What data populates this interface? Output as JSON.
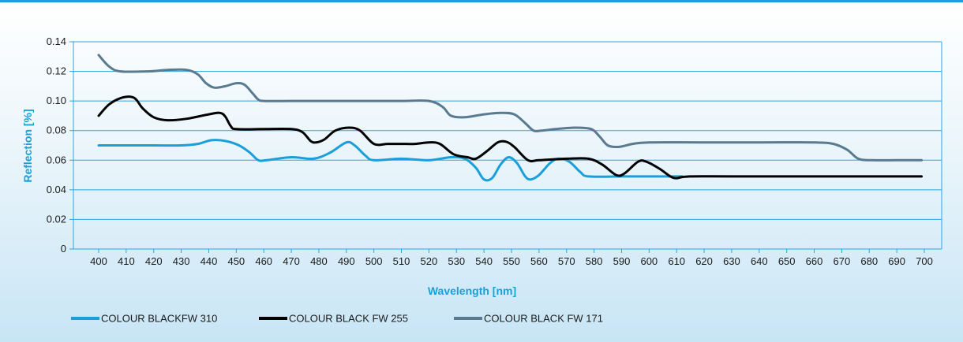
{
  "chart_data": {
    "type": "line",
    "title": "",
    "xlabel": "Wavelength [nm]",
    "ylabel": "Reflection [%]",
    "xlim": [
      400,
      700
    ],
    "ylim": [
      0,
      0.14
    ],
    "grid": "horizontal",
    "legend_position": "bottom",
    "x_ticks": [
      "400",
      "410",
      "420",
      "430",
      "440",
      "450",
      "460",
      "470",
      "480",
      "490",
      "500",
      "510",
      "520",
      "530",
      "540",
      "550",
      "560",
      "570",
      "580",
      "590",
      "600",
      "610",
      "620",
      "630",
      "640",
      "650",
      "660",
      "670",
      "680",
      "690",
      "700"
    ],
    "y_ticks": [
      "0",
      "0.02",
      "0.04",
      "0.06",
      "0.08",
      "0.10",
      "0.12",
      "0.14"
    ],
    "series": [
      {
        "name": "COLOUR BLACKFW 310",
        "color": "#1a9fdb",
        "points": [
          [
            400,
            0.07
          ],
          [
            410,
            0.07
          ],
          [
            420,
            0.07
          ],
          [
            430,
            0.07
          ],
          [
            436,
            0.071
          ],
          [
            441,
            0.0735
          ],
          [
            446,
            0.073
          ],
          [
            451,
            0.07
          ],
          [
            455,
            0.065
          ],
          [
            458,
            0.06
          ],
          [
            461,
            0.06
          ],
          [
            470,
            0.062
          ],
          [
            478,
            0.061
          ],
          [
            484,
            0.065
          ],
          [
            490,
            0.072
          ],
          [
            493,
            0.07
          ],
          [
            497,
            0.063
          ],
          [
            500,
            0.06
          ],
          [
            510,
            0.061
          ],
          [
            520,
            0.06
          ],
          [
            528,
            0.062
          ],
          [
            533,
            0.061
          ],
          [
            537,
            0.055
          ],
          [
            540,
            0.047
          ],
          [
            543,
            0.048
          ],
          [
            546,
            0.057
          ],
          [
            549,
            0.062
          ],
          [
            552,
            0.058
          ],
          [
            555,
            0.049
          ],
          [
            557,
            0.047
          ],
          [
            560,
            0.05
          ],
          [
            564,
            0.058
          ],
          [
            567,
            0.061
          ],
          [
            571,
            0.059
          ],
          [
            575,
            0.052
          ],
          [
            578,
            0.049
          ],
          [
            590,
            0.049
          ],
          [
            600,
            0.049
          ],
          [
            612,
            0.049
          ]
        ]
      },
      {
        "name": "COLOUR BLACK FW 255",
        "color": "#000000",
        "points": [
          [
            400,
            0.09
          ],
          [
            404,
            0.098
          ],
          [
            409,
            0.1025
          ],
          [
            413,
            0.102
          ],
          [
            416,
            0.095
          ],
          [
            420,
            0.089
          ],
          [
            425,
            0.087
          ],
          [
            432,
            0.088
          ],
          [
            440,
            0.091
          ],
          [
            444,
            0.092
          ],
          [
            446,
            0.0895
          ],
          [
            448,
            0.083
          ],
          [
            450,
            0.081
          ],
          [
            460,
            0.081
          ],
          [
            470,
            0.081
          ],
          [
            474,
            0.079
          ],
          [
            477,
            0.073
          ],
          [
            479,
            0.072
          ],
          [
            482,
            0.074
          ],
          [
            486,
            0.08
          ],
          [
            491,
            0.082
          ],
          [
            495,
            0.08
          ],
          [
            500,
            0.071
          ],
          [
            505,
            0.071
          ],
          [
            510,
            0.071
          ],
          [
            515,
            0.071
          ],
          [
            520,
            0.072
          ],
          [
            524,
            0.071
          ],
          [
            529,
            0.064
          ],
          [
            534,
            0.062
          ],
          [
            537,
            0.061
          ],
          [
            541,
            0.066
          ],
          [
            545,
            0.072
          ],
          [
            548,
            0.0725
          ],
          [
            551,
            0.069
          ],
          [
            556,
            0.06
          ],
          [
            560,
            0.06
          ],
          [
            570,
            0.061
          ],
          [
            578,
            0.061
          ],
          [
            583,
            0.057
          ],
          [
            588,
            0.05
          ],
          [
            591,
            0.051
          ],
          [
            596,
            0.059
          ],
          [
            599,
            0.059
          ],
          [
            604,
            0.054
          ],
          [
            609,
            0.048
          ],
          [
            615,
            0.049
          ],
          [
            640,
            0.049
          ],
          [
            670,
            0.049
          ],
          [
            699,
            0.049
          ]
        ]
      },
      {
        "name": "COLOUR BLACK FW 171",
        "color": "#597a8f",
        "points": [
          [
            400,
            0.131
          ],
          [
            404,
            0.123
          ],
          [
            408,
            0.12
          ],
          [
            418,
            0.12
          ],
          [
            425,
            0.121
          ],
          [
            432,
            0.121
          ],
          [
            436,
            0.118
          ],
          [
            439,
            0.112
          ],
          [
            442,
            0.109
          ],
          [
            446,
            0.11
          ],
          [
            450,
            0.112
          ],
          [
            453,
            0.111
          ],
          [
            456,
            0.105
          ],
          [
            458,
            0.101
          ],
          [
            460,
            0.1
          ],
          [
            470,
            0.1
          ],
          [
            480,
            0.1
          ],
          [
            490,
            0.1
          ],
          [
            500,
            0.1
          ],
          [
            510,
            0.1
          ],
          [
            520,
            0.1
          ],
          [
            525,
            0.096
          ],
          [
            528,
            0.09
          ],
          [
            533,
            0.089
          ],
          [
            540,
            0.091
          ],
          [
            546,
            0.092
          ],
          [
            551,
            0.091
          ],
          [
            555,
            0.085
          ],
          [
            558,
            0.08
          ],
          [
            561,
            0.08
          ],
          [
            566,
            0.081
          ],
          [
            573,
            0.082
          ],
          [
            579,
            0.081
          ],
          [
            582,
            0.076
          ],
          [
            585,
            0.07
          ],
          [
            589,
            0.069
          ],
          [
            594,
            0.071
          ],
          [
            600,
            0.072
          ],
          [
            620,
            0.072
          ],
          [
            640,
            0.072
          ],
          [
            660,
            0.072
          ],
          [
            667,
            0.071
          ],
          [
            672,
            0.067
          ],
          [
            676,
            0.061
          ],
          [
            681,
            0.06
          ],
          [
            690,
            0.06
          ],
          [
            699,
            0.06
          ]
        ]
      }
    ]
  }
}
